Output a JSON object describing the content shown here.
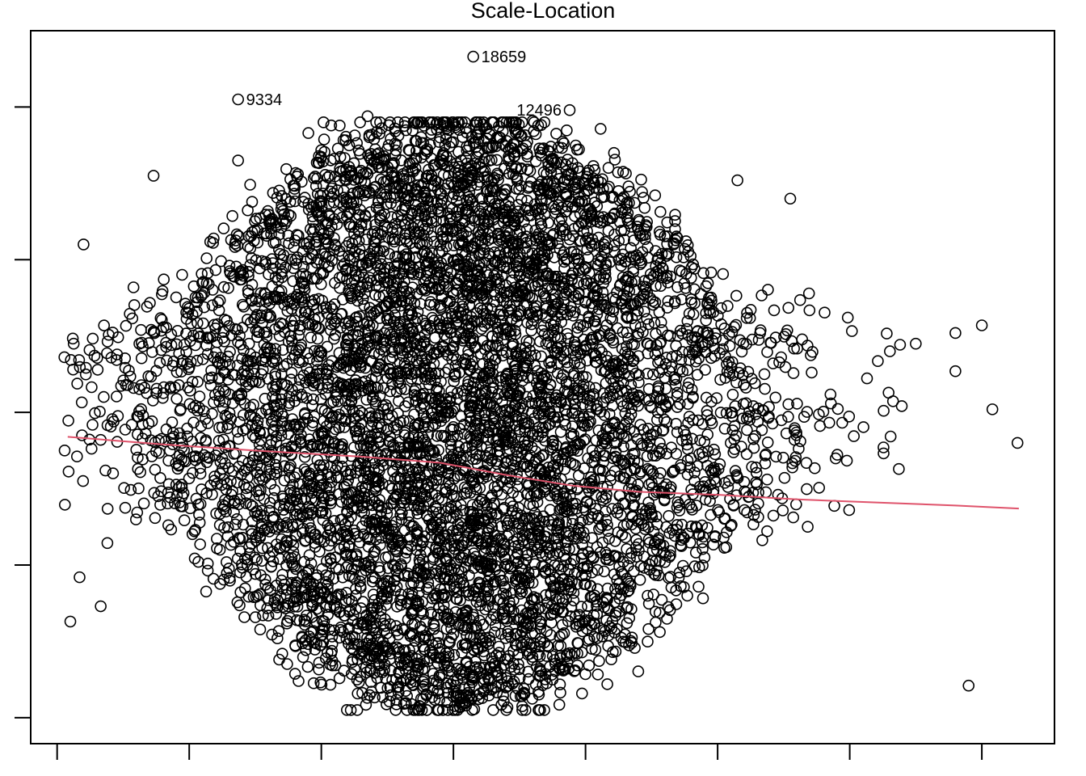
{
  "chart_data": {
    "type": "scatter",
    "title": "Scale-Location",
    "xlabel": "",
    "ylabel": "",
    "xlim": [
      -0.2,
      7.55
    ],
    "ylim": [
      -0.17,
      4.5
    ],
    "x_ticks": [
      0,
      1,
      2,
      3,
      4,
      5,
      6,
      7
    ],
    "y_ticks": [
      0,
      1,
      2,
      3,
      4
    ],
    "tick_labels_shown": false,
    "grid": false,
    "legend": "none",
    "colors": {
      "points": "#000000",
      "smooth": "#DF536B",
      "frame": "#000000"
    },
    "series": [
      {
        "kind": "points",
        "approx_count": 7000,
        "center_x": 3.0,
        "spread_x": 1.1,
        "y_range": [
          0.05,
          3.95
        ],
        "outliers": [
          {
            "x": 0.1,
            "y": 0.63
          },
          {
            "x": 0.2,
            "y": 3.1
          },
          {
            "x": 0.17,
            "y": 0.92
          },
          {
            "x": 0.33,
            "y": 0.73
          },
          {
            "x": 0.33,
            "y": 1.82
          },
          {
            "x": 6.8,
            "y": 2.27
          },
          {
            "x": 6.8,
            "y": 2.52
          },
          {
            "x": 7.0,
            "y": 2.57
          },
          {
            "x": 7.08,
            "y": 2.02
          },
          {
            "x": 7.27,
            "y": 1.8
          },
          {
            "x": 6.5,
            "y": 2.45
          },
          {
            "x": 6.9,
            "y": 0.21
          },
          {
            "x": 5.55,
            "y": 3.4
          },
          {
            "x": 5.15,
            "y": 3.52
          },
          {
            "x": 4.25,
            "y": 3.45
          },
          {
            "x": 1.37,
            "y": 3.65
          },
          {
            "x": 2.9,
            "y": 3.89
          },
          {
            "x": 2.35,
            "y": 3.94
          },
          {
            "x": 3.6,
            "y": 3.91
          },
          {
            "x": 0.73,
            "y": 3.55
          }
        ]
      },
      {
        "kind": "labeled_points",
        "points": [
          {
            "label": "18659",
            "x": 3.15,
            "y": 4.33
          },
          {
            "label": "9334",
            "x": 1.37,
            "y": 4.05
          },
          {
            "label": "12496",
            "x": 3.88,
            "y": 3.98
          }
        ]
      },
      {
        "kind": "smooth",
        "x": [
          0.08,
          0.8,
          1.5,
          2.3,
          2.9,
          3.4,
          3.9,
          4.4,
          5.0,
          5.6,
          6.2,
          6.8,
          7.28
        ],
        "y": [
          1.84,
          1.79,
          1.75,
          1.71,
          1.67,
          1.59,
          1.52,
          1.48,
          1.46,
          1.43,
          1.41,
          1.39,
          1.37
        ]
      }
    ]
  }
}
